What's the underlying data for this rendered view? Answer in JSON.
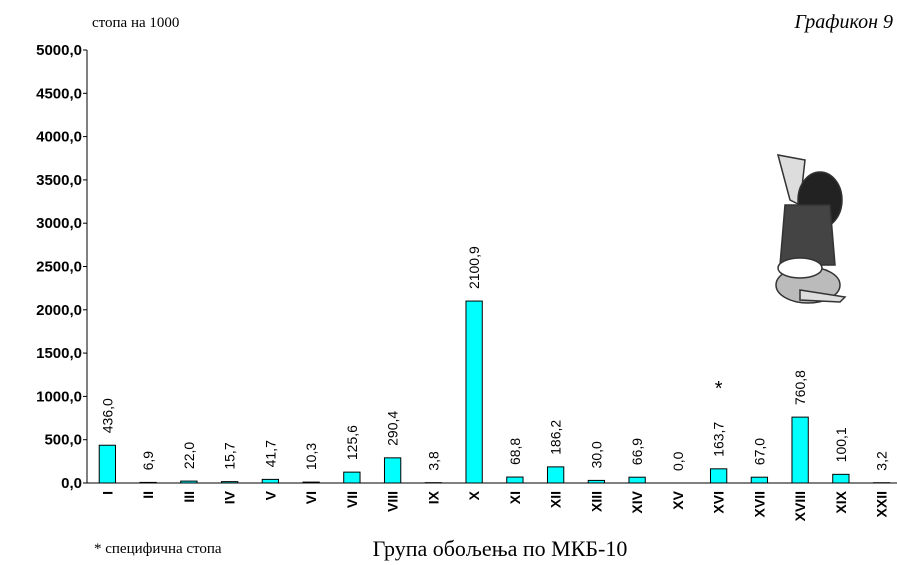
{
  "chart_data": {
    "type": "bar",
    "title": "Графикон 9",
    "y_unit_label": "стопа на 1000",
    "x_axis_label": "Група обољења по МКБ-10",
    "footnote": "* специфична стопа",
    "annotation": "*",
    "annotation_category": "XVI",
    "categories": [
      "I",
      "II",
      "III",
      "IV",
      "V",
      "VI",
      "VII",
      "VIII",
      "IX",
      "X",
      "XI",
      "XII",
      "XIII",
      "XIV",
      "XV",
      "XVI",
      "XVII",
      "XVIII",
      "XIX",
      "XXII"
    ],
    "values": [
      436.0,
      6.9,
      22.0,
      15.7,
      41.7,
      10.3,
      125.6,
      290.4,
      3.8,
      2100.9,
      68.8,
      186.2,
      30.0,
      66.9,
      0.0,
      163.7,
      67.0,
      760.8,
      100.1,
      3.2
    ],
    "value_labels": [
      "436,0",
      "6,9",
      "22,0",
      "15,7",
      "41,7",
      "10,3",
      "125,6",
      "290,4",
      "3,8",
      "2100,9",
      "68,8",
      "186,2",
      "30,0",
      "66,9",
      "0,0",
      "163,7",
      "67,0",
      "760,8",
      "100,1",
      "3,2"
    ],
    "color": "#00ffff",
    "ylim": [
      0,
      5000
    ],
    "yticks": [
      {
        "value": 0,
        "label": "0,0"
      },
      {
        "value": 500,
        "label": "500,0"
      },
      {
        "value": 1000,
        "label": "1000,0"
      },
      {
        "value": 1500,
        "label": "1500,0"
      },
      {
        "value": 2000,
        "label": "2000,0"
      },
      {
        "value": 2500,
        "label": "2500,0"
      },
      {
        "value": 3000,
        "label": "3000,0"
      },
      {
        "value": 3500,
        "label": "3500,0"
      },
      {
        "value": 4000,
        "label": "4000,0"
      },
      {
        "value": 4500,
        "label": "4500,0"
      },
      {
        "value": 5000,
        "label": "5000,0"
      }
    ],
    "grid": false
  }
}
